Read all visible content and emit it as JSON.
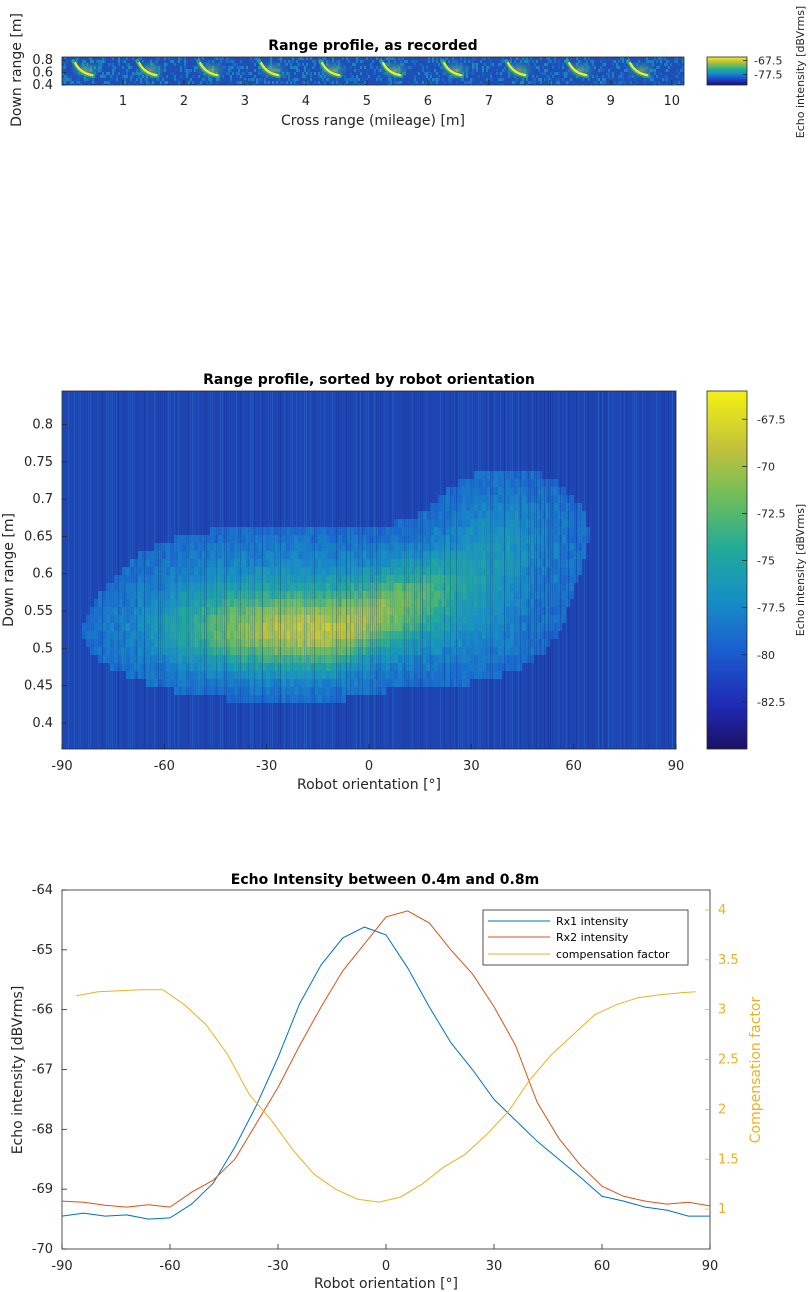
{
  "chart_data": [
    {
      "type": "heatmap",
      "title": "Range profile, as recorded",
      "xlabel": "Cross range (mileage) [m]",
      "ylabel": "Down range [m]",
      "xlim": [
        0,
        10.2
      ],
      "ylim": [
        0.4,
        0.85
      ],
      "xticks": [
        1,
        2,
        3,
        4,
        5,
        6,
        7,
        8,
        9,
        10
      ],
      "xtick_labels": [
        "1",
        "2",
        "3",
        "4",
        "5",
        "6",
        "7",
        "8",
        "9",
        "10"
      ],
      "yticks": [
        0.8,
        0.6,
        0.4
      ],
      "ytick_labels": [
        "0.8",
        "0.6",
        "0.4"
      ],
      "colorbar": {
        "label": "Echo intensity [dBVrms]",
        "ticks": [
          -67.5,
          -77.5
        ],
        "tick_labels": [
          "-67.5",
          "-77.5"
        ],
        "range": [
          -85,
          -65
        ]
      },
      "echo_arcs_x": [
        0.3,
        1.35,
        2.35,
        3.35,
        4.35,
        5.35,
        6.35,
        7.4,
        8.4,
        9.4
      ]
    },
    {
      "type": "heatmap",
      "title": "Range profile, sorted by robot orientation",
      "xlabel": "Robot orientation [°]",
      "ylabel": "Down range [m]",
      "xlim": [
        -90,
        90
      ],
      "ylim": [
        0.365,
        0.845
      ],
      "xticks": [
        -90,
        -60,
        -30,
        0,
        30,
        60,
        90
      ],
      "xtick_labels": [
        "-90",
        "-60",
        "-30",
        "0",
        "30",
        "60",
        "90"
      ],
      "yticks": [
        0.8,
        0.75,
        0.7,
        0.65,
        0.6,
        0.55,
        0.5,
        0.45,
        0.4
      ],
      "ytick_labels": [
        "0.8",
        "0.75",
        "0.7",
        "0.65",
        "0.6",
        "0.55",
        "0.5",
        "0.45",
        "0.4"
      ],
      "colorbar": {
        "label": "Echo intensity [dBVrms]",
        "ticks": [
          -67.5,
          -70,
          -72.5,
          -75,
          -77.5,
          -80,
          -82.5
        ],
        "tick_labels": [
          "-67.5",
          "-70",
          "-72.5",
          "-75",
          "-77.5",
          "-80",
          "-82.5"
        ],
        "range": [
          -85,
          -66
        ]
      }
    },
    {
      "type": "line",
      "title": "Echo Intensity between 0.4m and 0.8m",
      "xlabel": "Robot orientation [°]",
      "ylabel": "Echo intensity [dBVrms]",
      "y2label": "Compensation factor",
      "xlim": [
        -90,
        90
      ],
      "ylim": [
        -70,
        -64
      ],
      "y2lim": [
        0.6,
        4.2
      ],
      "xticks": [
        -90,
        -60,
        -30,
        0,
        30,
        60,
        90
      ],
      "xtick_labels": [
        "-90",
        "-60",
        "-30",
        "0",
        "30",
        "60",
        "90"
      ],
      "yticks": [
        -64,
        -65,
        -66,
        -67,
        -68,
        -69,
        -70
      ],
      "ytick_labels": [
        "-64",
        "-65",
        "-66",
        "-67",
        "-68",
        "-69",
        "-70"
      ],
      "y2ticks": [
        4,
        3.5,
        3,
        2.5,
        2,
        1.5,
        1
      ],
      "y2tick_labels": [
        "4",
        "3.5",
        "3",
        "2.5",
        "2",
        "1.5",
        "1"
      ],
      "legend_position": "top-right",
      "series": [
        {
          "name": "Rx1 intensity",
          "color": "#0072BD",
          "axis": "left",
          "x": [
            -90,
            -84,
            -78,
            -72,
            -66,
            -60,
            -54,
            -48,
            -42,
            -36,
            -30,
            -24,
            -18,
            -12,
            -6,
            0,
            6,
            12,
            18,
            24,
            30,
            36,
            42,
            48,
            54,
            60,
            66,
            72,
            78,
            84,
            90
          ],
          "y": [
            -69.45,
            -69.4,
            -69.45,
            -69.43,
            -69.5,
            -69.48,
            -69.25,
            -68.9,
            -68.3,
            -67.6,
            -66.8,
            -65.9,
            -65.25,
            -64.8,
            -64.62,
            -64.75,
            -65.3,
            -65.95,
            -66.55,
            -67.0,
            -67.5,
            -67.85,
            -68.2,
            -68.5,
            -68.8,
            -69.12,
            -69.2,
            -69.3,
            -69.35,
            -69.45,
            -69.45
          ]
        },
        {
          "name": "Rx2 intensity",
          "color": "#D95319",
          "axis": "left",
          "x": [
            -90,
            -84,
            -78,
            -72,
            -66,
            -60,
            -54,
            -48,
            -42,
            -36,
            -30,
            -24,
            -18,
            -12,
            -6,
            0,
            6,
            12,
            18,
            24,
            30,
            36,
            42,
            48,
            54,
            60,
            66,
            72,
            78,
            84,
            90
          ],
          "y": [
            -69.2,
            -69.22,
            -69.27,
            -69.3,
            -69.26,
            -69.3,
            -69.05,
            -68.85,
            -68.5,
            -67.9,
            -67.3,
            -66.6,
            -65.95,
            -65.35,
            -64.9,
            -64.45,
            -64.35,
            -64.55,
            -65.0,
            -65.4,
            -65.95,
            -66.6,
            -67.55,
            -68.15,
            -68.6,
            -68.95,
            -69.12,
            -69.2,
            -69.25,
            -69.22,
            -69.28
          ]
        },
        {
          "name": "compensation factor",
          "color": "#EDB120",
          "axis": "right",
          "x": [
            -86,
            -80,
            -74,
            -68,
            -62,
            -56,
            -50,
            -44,
            -38,
            -32,
            -26,
            -20,
            -14,
            -8,
            -2,
            4,
            10,
            16,
            22,
            28,
            34,
            40,
            46,
            52,
            58,
            64,
            70,
            76,
            82,
            86
          ],
          "y": [
            3.14,
            3.18,
            3.19,
            3.2,
            3.2,
            3.05,
            2.85,
            2.55,
            2.15,
            1.9,
            1.6,
            1.35,
            1.2,
            1.1,
            1.07,
            1.12,
            1.25,
            1.42,
            1.55,
            1.75,
            1.98,
            2.3,
            2.55,
            2.75,
            2.95,
            3.05,
            3.12,
            3.15,
            3.17,
            3.18
          ]
        }
      ]
    }
  ]
}
